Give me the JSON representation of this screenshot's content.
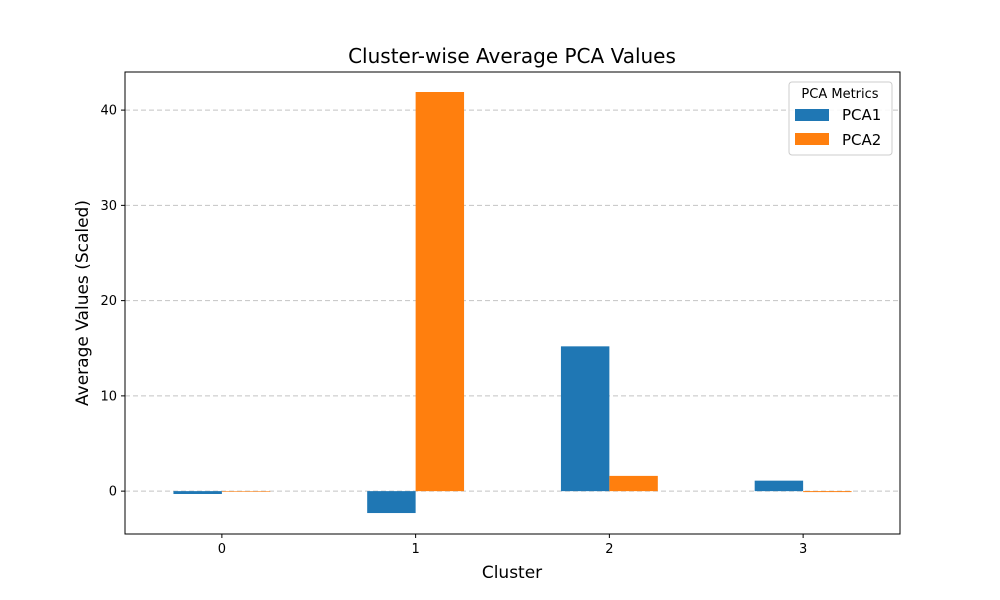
{
  "chart_data": {
    "type": "bar",
    "title": "Cluster-wise Average PCA Values",
    "xlabel": "Cluster",
    "ylabel": "Average Values (Scaled)",
    "categories": [
      "0",
      "1",
      "2",
      "3"
    ],
    "series": [
      {
        "name": "PCA1",
        "color": "#1f77b4",
        "values": [
          -0.3,
          -2.3,
          15.2,
          1.1
        ]
      },
      {
        "name": "PCA2",
        "color": "#ff7f0e",
        "values": [
          0.0,
          41.9,
          1.6,
          -0.1
        ]
      }
    ],
    "ylim": [
      -4.5,
      44.0
    ],
    "yticks": [
      0,
      10,
      20,
      30,
      40
    ],
    "grid": "y-dashed",
    "legend": {
      "title": "PCA Metrics",
      "placement": "top-right"
    }
  }
}
